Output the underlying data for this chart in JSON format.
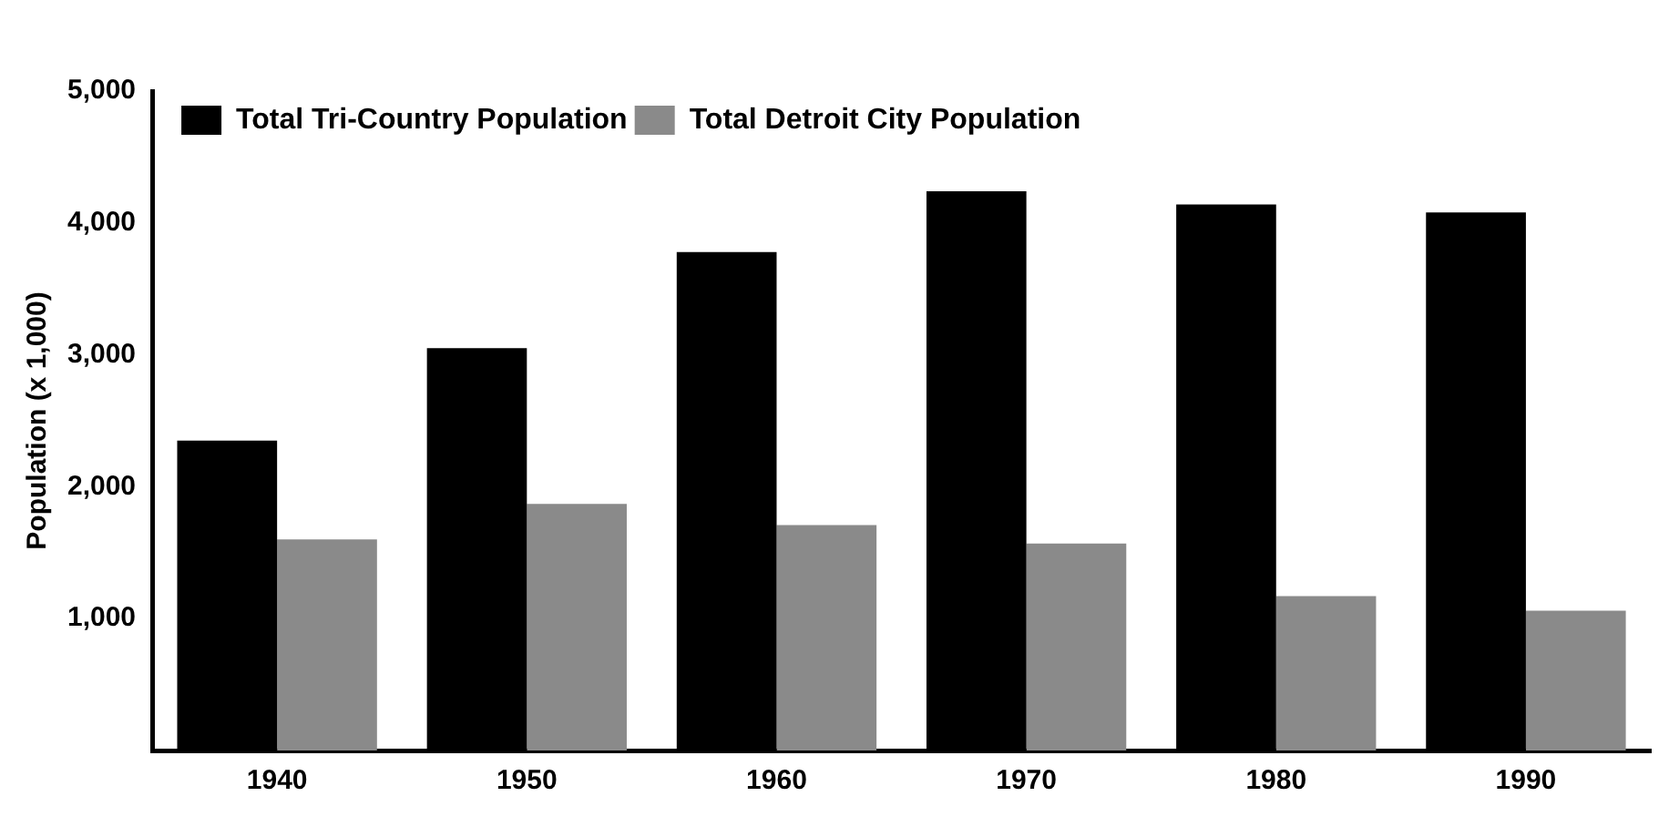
{
  "chart_data": {
    "type": "bar",
    "ylabel": "Population (x 1,000)",
    "categories": [
      "1940",
      "1950",
      "1960",
      "1970",
      "1980",
      "1990"
    ],
    "series": [
      {
        "name": "Total Tri-Country Population",
        "color": "#000000",
        "values": [
          2350,
          3050,
          3780,
          4240,
          4140,
          4080
        ]
      },
      {
        "name": "Total Detroit City Population",
        "color": "#8a8a8a",
        "values": [
          1600,
          1870,
          1710,
          1570,
          1170,
          1060
        ]
      }
    ],
    "ylim": [
      0,
      5000
    ],
    "yticks": [
      {
        "value": 1000,
        "label": "1,000"
      },
      {
        "value": 2000,
        "label": "2,000"
      },
      {
        "value": 3000,
        "label": "3,000"
      },
      {
        "value": 4000,
        "label": "4,000"
      },
      {
        "value": 5000,
        "label": "5,000"
      }
    ],
    "grid": false,
    "legend": "top left"
  }
}
